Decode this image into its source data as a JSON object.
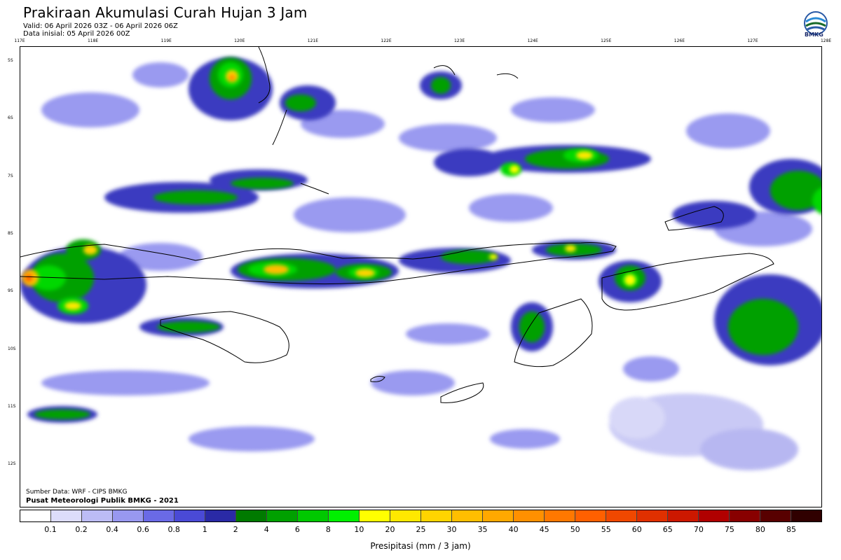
{
  "header": {
    "title": "Prakiraan Akumulasi Curah Hujan 3 Jam",
    "valid": "Valid: 06 April 2026 03Z - 06 April 2026 06Z",
    "init": "Data inisial: 05 April 2026 00Z"
  },
  "logo": {
    "text": "BMKG",
    "icon": "bmkg-logo"
  },
  "axes": {
    "lon_labels": [
      "117E",
      "118E",
      "119E",
      "120E",
      "121E",
      "122E",
      "123E",
      "124E",
      "125E",
      "126E",
      "127E",
      "128E"
    ],
    "lat_labels": [
      "5S",
      "6S",
      "7S",
      "8S",
      "9S",
      "10S",
      "11S",
      "12S"
    ]
  },
  "credits": {
    "source": "Sumber Data: WRF - CIPS BMKG",
    "org": "Pusat Meteorologi Publik BMKG - 2021"
  },
  "legend": {
    "labels": [
      "0.1",
      "0.2",
      "0.4",
      "0.6",
      "0.8",
      "1",
      "2",
      "4",
      "6",
      "8",
      "10",
      "20",
      "25",
      "30",
      "35",
      "40",
      "45",
      "50",
      "55",
      "60",
      "65",
      "70",
      "75",
      "80",
      "85"
    ],
    "colors": [
      "#ffffff",
      "#dcdcfa",
      "#bcbcf5",
      "#9898f0",
      "#6a6ae6",
      "#4a4ad6",
      "#2a2aa6",
      "#007a00",
      "#00a000",
      "#00c800",
      "#00f000",
      "#ffff00",
      "#ffe800",
      "#ffd400",
      "#ffbe00",
      "#ffa800",
      "#ff9000",
      "#ff7800",
      "#ff6000",
      "#f04800",
      "#e03000",
      "#cc1800",
      "#b00000",
      "#880000",
      "#580000",
      "#300000"
    ],
    "unit": "Presipitasi (mm / 3 jam)"
  }
}
